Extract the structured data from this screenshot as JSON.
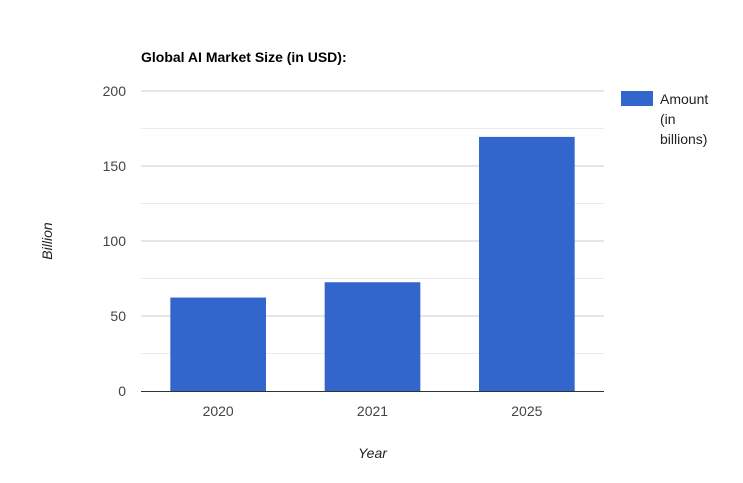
{
  "chart_data": {
    "type": "bar",
    "title": "Global AI Market Size (in USD):",
    "xlabel": "Year",
    "ylabel": "Billion",
    "categories": [
      "2020",
      "2021",
      "2025"
    ],
    "series": [
      {
        "name": "Amount (in billions)",
        "legend_lines": [
          "Amount",
          "(in",
          "billions)"
        ],
        "color": "#3366cc",
        "values": [
          62.3,
          72.5,
          169.4
        ]
      }
    ],
    "ylim": [
      0,
      200
    ],
    "yticks": [
      0,
      50,
      100,
      150,
      200
    ],
    "ytick_labels": [
      "0",
      "50",
      "100",
      "150",
      "200"
    ],
    "minor_gridlines": [
      25,
      75,
      125,
      175
    ],
    "grid": true,
    "legend_position": "right",
    "colors": {
      "gridline": "#cccccc",
      "minor_gridline": "#ebebeb",
      "baseline": "#333333"
    }
  }
}
